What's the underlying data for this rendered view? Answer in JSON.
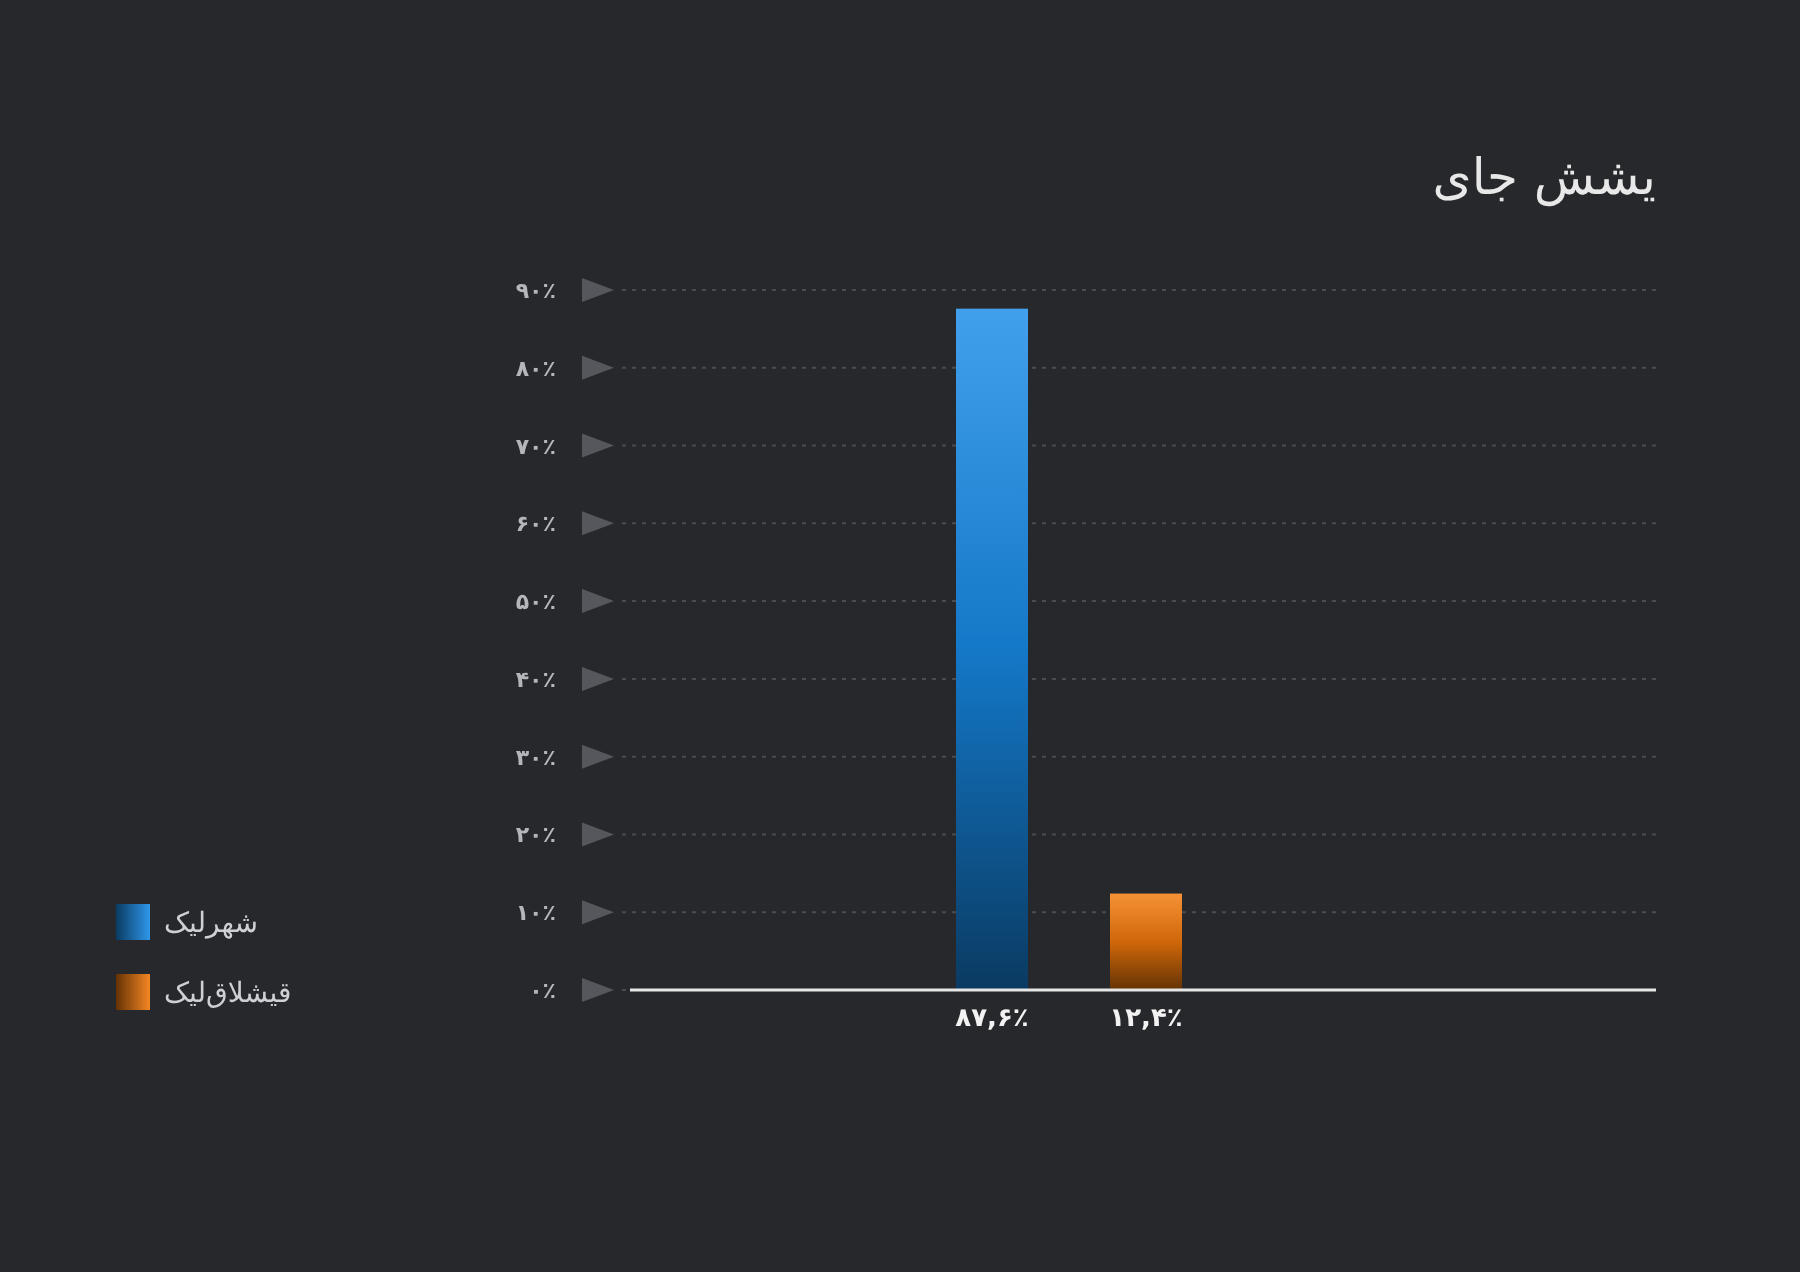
{
  "chart_data": {
    "type": "bar",
    "title": "یشش جای",
    "categories": [
      null,
      null
    ],
    "series": [
      {
        "name": "شهرلیک",
        "color": "#1478c8",
        "values": [
          87.6,
          null
        ],
        "value_labels": [
          "۸۷,۶٪",
          null
        ]
      },
      {
        "name": "قیشلاق‌لیک",
        "color": "#d0680a",
        "values": [
          null,
          12.4
        ],
        "value_labels": [
          null,
          "۱۲,۴٪"
        ]
      }
    ],
    "ylim": [
      0,
      90
    ],
    "yticks": [
      {
        "value": 0,
        "label": "۰٪"
      },
      {
        "value": 10,
        "label": "۱۰٪"
      },
      {
        "value": 20,
        "label": "۲۰٪"
      },
      {
        "value": 30,
        "label": "۳۰٪"
      },
      {
        "value": 40,
        "label": "۴۰٪"
      },
      {
        "value": 50,
        "label": "۵۰٪"
      },
      {
        "value": 60,
        "label": "۶۰٪"
      },
      {
        "value": 70,
        "label": "۷۰٪"
      },
      {
        "value": 80,
        "label": "۸۰٪"
      },
      {
        "value": 90,
        "label": "۹۰٪"
      }
    ],
    "grid": "y",
    "legend": "bottom left"
  }
}
